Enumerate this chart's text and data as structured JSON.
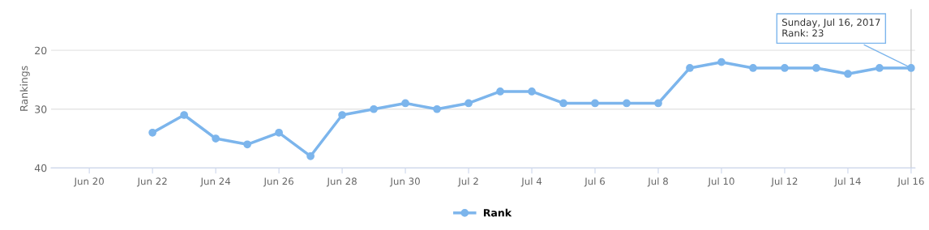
{
  "chart_data": {
    "type": "line",
    "ylabel": "Rankings",
    "x": [
      "2017-06-22",
      "2017-06-23",
      "2017-06-24",
      "2017-06-25",
      "2017-06-26",
      "2017-06-27",
      "2017-06-28",
      "2017-06-29",
      "2017-06-30",
      "2017-07-01",
      "2017-07-02",
      "2017-07-03",
      "2017-07-04",
      "2017-07-05",
      "2017-07-06",
      "2017-07-07",
      "2017-07-08",
      "2017-07-09",
      "2017-07-10",
      "2017-07-11",
      "2017-07-12",
      "2017-07-13",
      "2017-07-14",
      "2017-07-15",
      "2017-07-16"
    ],
    "series": [
      {
        "name": "Rank",
        "color": "#7cb5ec",
        "values": [
          34,
          31,
          35,
          36,
          34,
          38,
          31,
          30,
          29,
          30,
          29,
          27,
          27,
          29,
          29,
          29,
          29,
          23,
          22,
          23,
          23,
          23,
          24,
          23,
          23
        ]
      }
    ],
    "xlim": [
      "2017-06-18T19:00",
      "2017-07-16T03:00"
    ],
    "xticks": [
      {
        "value": "2017-06-20",
        "label": "Jun 20"
      },
      {
        "value": "2017-06-22",
        "label": "Jun 22"
      },
      {
        "value": "2017-06-24",
        "label": "Jun 24"
      },
      {
        "value": "2017-06-26",
        "label": "Jun 26"
      },
      {
        "value": "2017-06-28",
        "label": "Jun 28"
      },
      {
        "value": "2017-06-30",
        "label": "Jun 30"
      },
      {
        "value": "2017-07-02",
        "label": "Jul 2"
      },
      {
        "value": "2017-07-04",
        "label": "Jul 4"
      },
      {
        "value": "2017-07-06",
        "label": "Jul 6"
      },
      {
        "value": "2017-07-08",
        "label": "Jul 8"
      },
      {
        "value": "2017-07-10",
        "label": "Jul 10"
      },
      {
        "value": "2017-07-12",
        "label": "Jul 12"
      },
      {
        "value": "2017-07-14",
        "label": "Jul 14"
      },
      {
        "value": "2017-07-16",
        "label": "Jul 16"
      }
    ],
    "ylim": [
      40,
      13
    ],
    "yticks": [
      20,
      30,
      40
    ],
    "grid": "y",
    "legend": "bottom",
    "marker": "circle",
    "line_style": "solid",
    "ref_lines": [
      {
        "axis": "x",
        "value": "2017-07-16",
        "color": "#cccccc"
      }
    ],
    "annotations": [
      {
        "text": "Sunday, Jul 16, 2017\nRank: 23",
        "x": "2017-07-16",
        "y": 23
      }
    ]
  }
}
